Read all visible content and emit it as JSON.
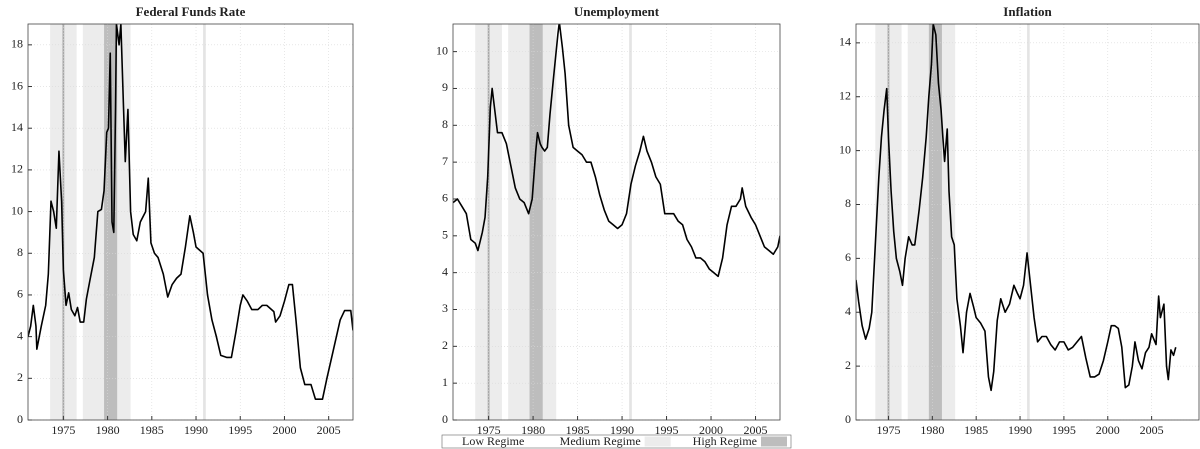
{
  "chart_data": [
    {
      "type": "line",
      "title": "Federal Funds Rate",
      "color": "#000000",
      "grid": true,
      "xlim": [
        1971,
        2007.75
      ],
      "xticks": [
        1975,
        1980,
        1985,
        1990,
        1995,
        2000,
        2005
      ],
      "ylim": [
        0,
        19
      ],
      "yticks": [
        0,
        2,
        4,
        6,
        8,
        10,
        12,
        14,
        16,
        18
      ],
      "shading": [
        {
          "x0": 1973.5,
          "x1": 1976.5,
          "color": "#ececec"
        },
        {
          "x0": 1974.9,
          "x1": 1975.1,
          "color": "#a8a8a8"
        },
        {
          "x0": 1977.2,
          "x1": 1979.6,
          "color": "#ececec"
        },
        {
          "x0": 1979.6,
          "x1": 1981.1,
          "color": "#bdbdbd"
        },
        {
          "x0": 1981.1,
          "x1": 1982.6,
          "color": "#ececec"
        },
        {
          "x0": 1990.8,
          "x1": 1991.1,
          "color": "#e4e4e4"
        }
      ],
      "x": [
        1971.0,
        1971.3,
        1971.6,
        1971.9,
        1972.0,
        1972.5,
        1973.0,
        1973.3,
        1973.6,
        1973.9,
        1974.2,
        1974.5,
        1974.8,
        1975.0,
        1975.3,
        1975.6,
        1975.9,
        1976.3,
        1976.6,
        1976.9,
        1977.3,
        1977.6,
        1978.0,
        1978.5,
        1978.9,
        1979.3,
        1979.6,
        1979.9,
        1980.1,
        1980.3,
        1980.5,
        1980.7,
        1980.9,
        1981.0,
        1981.3,
        1981.5,
        1981.8,
        1982.0,
        1982.3,
        1982.6,
        1982.9,
        1983.3,
        1983.7,
        1984.3,
        1984.6,
        1984.9,
        1985.3,
        1985.7,
        1986.3,
        1986.8,
        1987.3,
        1987.8,
        1988.3,
        1988.8,
        1989.3,
        1989.7,
        1990.0,
        1990.8,
        1991.3,
        1991.8,
        1992.3,
        1992.8,
        1993.5,
        1994.0,
        1994.5,
        1995.0,
        1995.3,
        1995.8,
        1996.3,
        1997.0,
        1997.5,
        1998.0,
        1998.8,
        1999.0,
        1999.5,
        2000.0,
        2000.5,
        2000.9,
        2001.3,
        2001.8,
        2002.3,
        2003.0,
        2003.5,
        2004.3,
        2004.8,
        2005.5,
        2006.3,
        2006.8,
        2007.5,
        2007.75
      ],
      "values": [
        4.0,
        4.5,
        5.5,
        4.5,
        3.4,
        4.5,
        5.5,
        7.0,
        10.5,
        10.0,
        9.2,
        12.9,
        10.5,
        7.2,
        5.5,
        6.1,
        5.3,
        5.0,
        5.4,
        4.7,
        4.7,
        5.8,
        6.7,
        7.8,
        10.0,
        10.1,
        11.0,
        13.8,
        14.0,
        17.6,
        9.5,
        9.0,
        15.0,
        19.0,
        18.0,
        19.0,
        15.0,
        12.4,
        14.9,
        10.0,
        8.9,
        8.6,
        9.5,
        10.0,
        11.6,
        8.5,
        8.0,
        7.8,
        7.0,
        5.9,
        6.5,
        6.8,
        7.0,
        8.3,
        9.8,
        9.0,
        8.3,
        8.0,
        6.0,
        4.8,
        4.0,
        3.1,
        3.0,
        3.0,
        4.2,
        5.5,
        6.0,
        5.7,
        5.3,
        5.3,
        5.5,
        5.5,
        5.2,
        4.7,
        5.0,
        5.7,
        6.5,
        6.5,
        4.8,
        2.5,
        1.7,
        1.7,
        1.0,
        1.0,
        2.0,
        3.3,
        4.8,
        5.25,
        5.25,
        4.3
      ]
    },
    {
      "type": "line",
      "title": "Unemployment",
      "color": "#000000",
      "grid": true,
      "xlim": [
        1971,
        2007.75
      ],
      "xticks": [
        1975,
        1980,
        1985,
        1990,
        1995,
        2000,
        2005
      ],
      "ylim": [
        0,
        10.75
      ],
      "yticks": [
        0,
        1,
        2,
        3,
        4,
        5,
        6,
        7,
        8,
        9,
        10
      ],
      "shading": [
        {
          "x0": 1973.5,
          "x1": 1976.5,
          "color": "#ececec"
        },
        {
          "x0": 1974.9,
          "x1": 1975.1,
          "color": "#a8a8a8"
        },
        {
          "x0": 1977.2,
          "x1": 1979.6,
          "color": "#ececec"
        },
        {
          "x0": 1979.6,
          "x1": 1981.1,
          "color": "#bdbdbd"
        },
        {
          "x0": 1981.1,
          "x1": 1982.6,
          "color": "#ececec"
        },
        {
          "x0": 1990.8,
          "x1": 1991.1,
          "color": "#e4e4e4"
        }
      ],
      "legend": [
        {
          "name": "Low Regime",
          "color": "#ffffff"
        },
        {
          "name": "Medium Regime",
          "color": "#ececec"
        },
        {
          "name": "High Regime",
          "color": "#bdbdbd"
        }
      ],
      "x": [
        1971.0,
        1971.5,
        1972.0,
        1972.5,
        1973.0,
        1973.5,
        1973.8,
        1974.3,
        1974.6,
        1974.9,
        1975.2,
        1975.4,
        1975.7,
        1976.0,
        1976.5,
        1977.0,
        1977.5,
        1978.0,
        1978.5,
        1979.0,
        1979.5,
        1979.9,
        1980.3,
        1980.5,
        1980.8,
        1981.0,
        1981.3,
        1981.6,
        1981.9,
        1982.3,
        1982.8,
        1982.95,
        1983.3,
        1983.6,
        1984.0,
        1984.5,
        1985.0,
        1985.5,
        1986.0,
        1986.5,
        1987.0,
        1987.5,
        1988.0,
        1988.5,
        1989.0,
        1989.5,
        1990.0,
        1990.5,
        1991.0,
        1991.5,
        1992.0,
        1992.4,
        1992.8,
        1993.3,
        1993.8,
        1994.3,
        1994.8,
        1995.3,
        1995.8,
        1996.3,
        1996.8,
        1997.3,
        1997.8,
        1998.3,
        1998.8,
        1999.3,
        1999.8,
        2000.3,
        2000.8,
        2001.3,
        2001.8,
        2002.3,
        2002.8,
        2003.3,
        2003.5,
        2003.9,
        2004.5,
        2005.0,
        2005.5,
        2006.0,
        2006.5,
        2007.0,
        2007.5,
        2007.75
      ],
      "values": [
        5.9,
        6.0,
        5.8,
        5.6,
        4.9,
        4.8,
        4.6,
        5.1,
        5.5,
        6.6,
        8.5,
        9.0,
        8.4,
        7.8,
        7.8,
        7.5,
        6.9,
        6.3,
        6.0,
        5.9,
        5.6,
        6.0,
        7.3,
        7.8,
        7.5,
        7.4,
        7.3,
        7.4,
        8.3,
        9.3,
        10.5,
        10.8,
        10.1,
        9.4,
        8.0,
        7.4,
        7.3,
        7.2,
        7.0,
        7.0,
        6.6,
        6.1,
        5.7,
        5.4,
        5.3,
        5.2,
        5.3,
        5.6,
        6.4,
        6.9,
        7.3,
        7.7,
        7.3,
        7.0,
        6.6,
        6.4,
        5.6,
        5.6,
        5.6,
        5.4,
        5.3,
        4.9,
        4.7,
        4.4,
        4.4,
        4.3,
        4.1,
        4.0,
        3.9,
        4.4,
        5.3,
        5.8,
        5.8,
        6.0,
        6.3,
        5.8,
        5.5,
        5.3,
        5.0,
        4.7,
        4.6,
        4.5,
        4.7,
        5.0
      ]
    },
    {
      "type": "line",
      "title": "Inflation",
      "color": "#000000",
      "grid": true,
      "xlim": [
        1971.3,
        2010.4
      ],
      "xticks": [
        1975,
        1980,
        1985,
        1990,
        1995,
        2000,
        2005
      ],
      "ylim": [
        0,
        14.7
      ],
      "yticks": [
        0,
        2,
        4,
        6,
        8,
        10,
        12,
        14
      ],
      "shading": [
        {
          "x0": 1973.5,
          "x1": 1976.5,
          "color": "#ececec"
        },
        {
          "x0": 1974.9,
          "x1": 1975.1,
          "color": "#a8a8a8"
        },
        {
          "x0": 1977.2,
          "x1": 1979.6,
          "color": "#ececec"
        },
        {
          "x0": 1979.6,
          "x1": 1981.1,
          "color": "#bdbdbd"
        },
        {
          "x0": 1981.1,
          "x1": 1982.6,
          "color": "#ececec"
        },
        {
          "x0": 1990.8,
          "x1": 1991.1,
          "color": "#e4e4e4"
        }
      ],
      "x": [
        1971.3,
        1971.6,
        1972.0,
        1972.4,
        1972.8,
        1973.1,
        1973.5,
        1973.9,
        1974.2,
        1974.5,
        1974.8,
        1975.0,
        1975.3,
        1975.6,
        1975.9,
        1976.3,
        1976.6,
        1976.9,
        1977.3,
        1977.7,
        1978.0,
        1978.5,
        1978.9,
        1979.3,
        1979.6,
        1979.9,
        1980.1,
        1980.4,
        1980.7,
        1981.0,
        1981.2,
        1981.4,
        1981.7,
        1981.9,
        1982.2,
        1982.5,
        1982.8,
        1983.2,
        1983.5,
        1983.9,
        1984.3,
        1984.7,
        1985.0,
        1985.5,
        1986.0,
        1986.4,
        1986.7,
        1987.0,
        1987.4,
        1987.8,
        1988.3,
        1988.8,
        1989.3,
        1989.7,
        1990.0,
        1990.4,
        1990.8,
        1991.2,
        1991.6,
        1992.0,
        1992.5,
        1993.0,
        1993.5,
        1994.0,
        1994.5,
        1995.0,
        1995.5,
        1996.0,
        1996.5,
        1997.0,
        1997.5,
        1998.0,
        1998.5,
        1999.0,
        1999.5,
        2000.0,
        2000.4,
        2000.8,
        2001.2,
        2001.6,
        2002.0,
        2002.4,
        2002.8,
        2003.1,
        2003.5,
        2003.9,
        2004.3,
        2004.7,
        2005.0,
        2005.5,
        2005.8,
        2006.0,
        2006.4,
        2006.7,
        2006.9,
        2007.2,
        2007.5,
        2007.75
      ],
      "values": [
        5.2,
        4.4,
        3.5,
        3.0,
        3.4,
        4.0,
        6.5,
        9.0,
        10.5,
        11.5,
        12.3,
        10.5,
        8.5,
        7.0,
        6.0,
        5.5,
        5.0,
        6.0,
        6.8,
        6.5,
        6.5,
        7.8,
        9.0,
        10.5,
        12.0,
        13.2,
        14.7,
        14.3,
        12.5,
        11.5,
        10.5,
        9.6,
        10.8,
        8.5,
        6.8,
        6.5,
        4.5,
        3.5,
        2.5,
        4.0,
        4.7,
        4.2,
        3.8,
        3.6,
        3.3,
        1.6,
        1.1,
        1.8,
        3.7,
        4.5,
        4.0,
        4.3,
        5.0,
        4.7,
        4.5,
        5.0,
        6.2,
        5.0,
        3.8,
        2.9,
        3.1,
        3.1,
        2.8,
        2.6,
        2.9,
        2.9,
        2.6,
        2.7,
        2.9,
        3.1,
        2.3,
        1.6,
        1.6,
        1.7,
        2.2,
        2.9,
        3.5,
        3.5,
        3.4,
        2.7,
        1.2,
        1.3,
        2.0,
        2.9,
        2.2,
        1.9,
        2.5,
        2.7,
        3.2,
        2.8,
        4.6,
        3.8,
        4.3,
        2.0,
        1.5,
        2.6,
        2.4,
        2.7
      ]
    }
  ]
}
